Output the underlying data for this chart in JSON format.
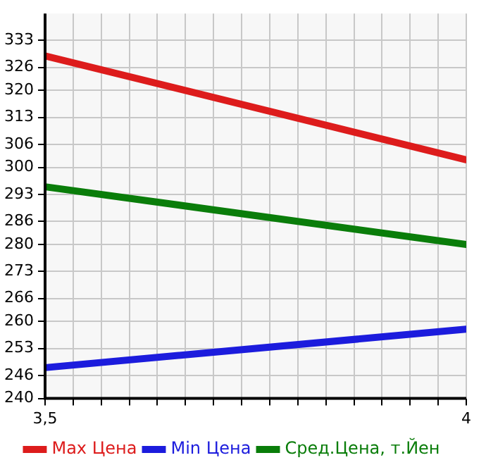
{
  "chart_data": {
    "type": "line",
    "x": [
      3.5,
      4
    ],
    "series": [
      {
        "name": "Max Цена",
        "color": "#dd1c1c",
        "values": [
          329,
          302
        ]
      },
      {
        "name": "Min Цена",
        "color": "#1c1cdd",
        "values": [
          248,
          258
        ]
      },
      {
        "name": "Сред.Цена, т.Йен",
        "color": "#0a7d0a",
        "values": [
          295,
          280
        ]
      }
    ],
    "xlim": [
      3.5,
      4
    ],
    "xticks": [
      {
        "value": 3.5,
        "label": "3,5"
      },
      {
        "value": 3.5333,
        "label": null
      },
      {
        "value": 3.5667,
        "label": null
      },
      {
        "value": 3.6,
        "label": null
      },
      {
        "value": 3.6333,
        "label": null
      },
      {
        "value": 3.6667,
        "label": null
      },
      {
        "value": 3.7,
        "label": null
      },
      {
        "value": 3.7333,
        "label": null
      },
      {
        "value": 3.7667,
        "label": null
      },
      {
        "value": 3.8,
        "label": null
      },
      {
        "value": 3.8333,
        "label": null
      },
      {
        "value": 3.8667,
        "label": null
      },
      {
        "value": 3.9,
        "label": null
      },
      {
        "value": 3.9333,
        "label": null
      },
      {
        "value": 3.9667,
        "label": null
      },
      4
    ],
    "ylim": [
      240,
      340
    ],
    "yticks": [
      240,
      246,
      253,
      260,
      266,
      273,
      280,
      286,
      293,
      300,
      306,
      313,
      320,
      326,
      333
    ],
    "grid": true,
    "legend": "bottom",
    "marker": "none",
    "line_style": "solid"
  }
}
